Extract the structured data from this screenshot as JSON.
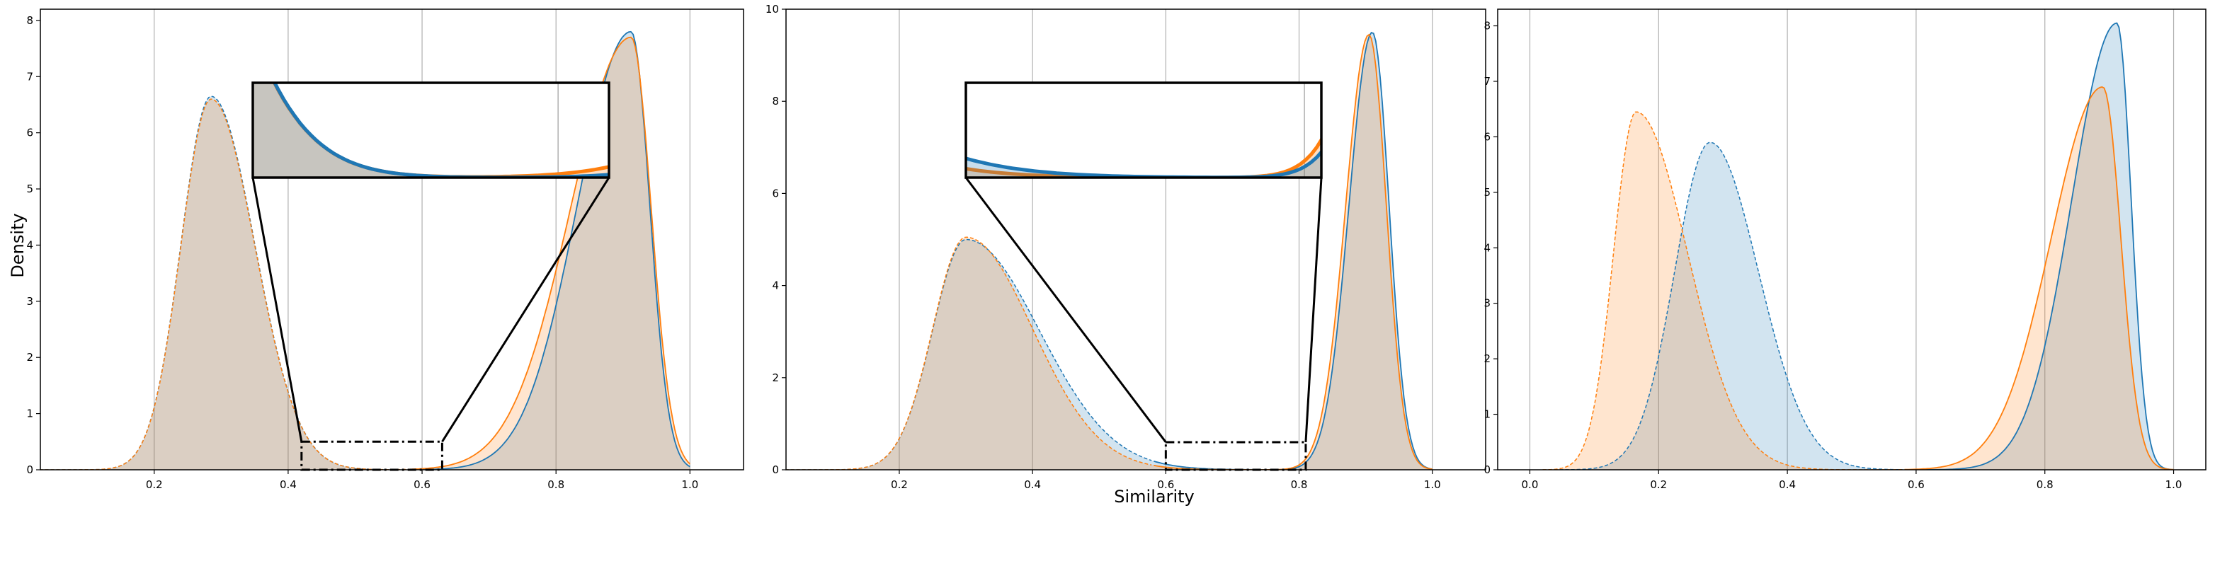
{
  "figure": {
    "ylabel": "Density",
    "xlabel": "Similarity"
  },
  "chart_data": [
    {
      "type": "area",
      "xlim": [
        0.03,
        1.08
      ],
      "ylim": [
        0,
        8.2
      ],
      "xticks": [
        "0.2",
        "0.4",
        "0.6",
        "0.8",
        "1.0"
      ],
      "yticks": [
        "0",
        "1",
        "2",
        "3",
        "4",
        "5",
        "6",
        "7",
        "8"
      ],
      "grid": "vertical",
      "series": [
        {
          "color": "#1f77b4",
          "linestyle": "dashed-first-solid-second",
          "peaks": [
            [
              0.285,
              6.65,
              0.045,
              0.065
            ],
            [
              0.912,
              7.8,
              0.08,
              0.028
            ]
          ],
          "points": []
        },
        {
          "color": "#ff7f0e",
          "linestyle": "dashed-first-solid-second",
          "peaks": [
            [
              0.285,
              6.6,
              0.045,
              0.065
            ],
            [
              0.912,
              7.7,
              0.09,
              0.03
            ]
          ],
          "points": []
        }
      ],
      "zoom": {
        "xrange": [
          0.42,
          0.63
        ],
        "yrange": [
          0,
          0.5
        ]
      }
    },
    {
      "type": "area",
      "xlim": [
        0.03,
        1.08
      ],
      "ylim": [
        0,
        10
      ],
      "xticks": [
        "0.2",
        "0.4",
        "0.6",
        "0.8",
        "1.0"
      ],
      "yticks": [
        "0",
        "2",
        "4",
        "6",
        "8",
        "10"
      ],
      "grid": "vertical",
      "series": [
        {
          "color": "#1f77b4",
          "linestyle": "dashed-first-solid-second",
          "peaks": [
            [
              0.3,
              5.0,
              0.05,
              0.11
            ],
            [
              0.91,
              9.5,
              0.035,
              0.025
            ]
          ],
          "points": []
        },
        {
          "color": "#ff7f0e",
          "linestyle": "dashed-first-solid-second",
          "peaks": [
            [
              0.3,
              5.05,
              0.05,
              0.1
            ],
            [
              0.905,
              9.45,
              0.035,
              0.026
            ]
          ],
          "points": []
        }
      ],
      "zoom": {
        "xrange": [
          0.6,
          0.81
        ],
        "yrange": [
          0,
          0.6
        ]
      }
    },
    {
      "type": "area",
      "xlim": [
        -0.05,
        1.05
      ],
      "ylim": [
        0,
        8.3
      ],
      "xticks": [
        "0.0",
        "0.2",
        "0.4",
        "0.6",
        "0.8",
        "1.0"
      ],
      "yticks": [
        "0",
        "1",
        "2",
        "3",
        "4",
        "5",
        "6",
        "7",
        "8"
      ],
      "grid": "vertical",
      "series": [
        {
          "color": "#1f77b4",
          "linestyle": "dashed-first-solid-second",
          "peaks": [
            [
              0.28,
              5.9,
              0.055,
              0.075
            ],
            [
              0.912,
              8.05,
              0.07,
              0.022
            ]
          ],
          "points": []
        },
        {
          "color": "#ff7f0e",
          "linestyle": "dashed-first-solid-second",
          "peaks": [
            [
              0.165,
              6.45,
              0.035,
              0.08
            ],
            [
              0.89,
              6.9,
              0.08,
              0.028
            ]
          ],
          "points": []
        }
      ]
    }
  ]
}
